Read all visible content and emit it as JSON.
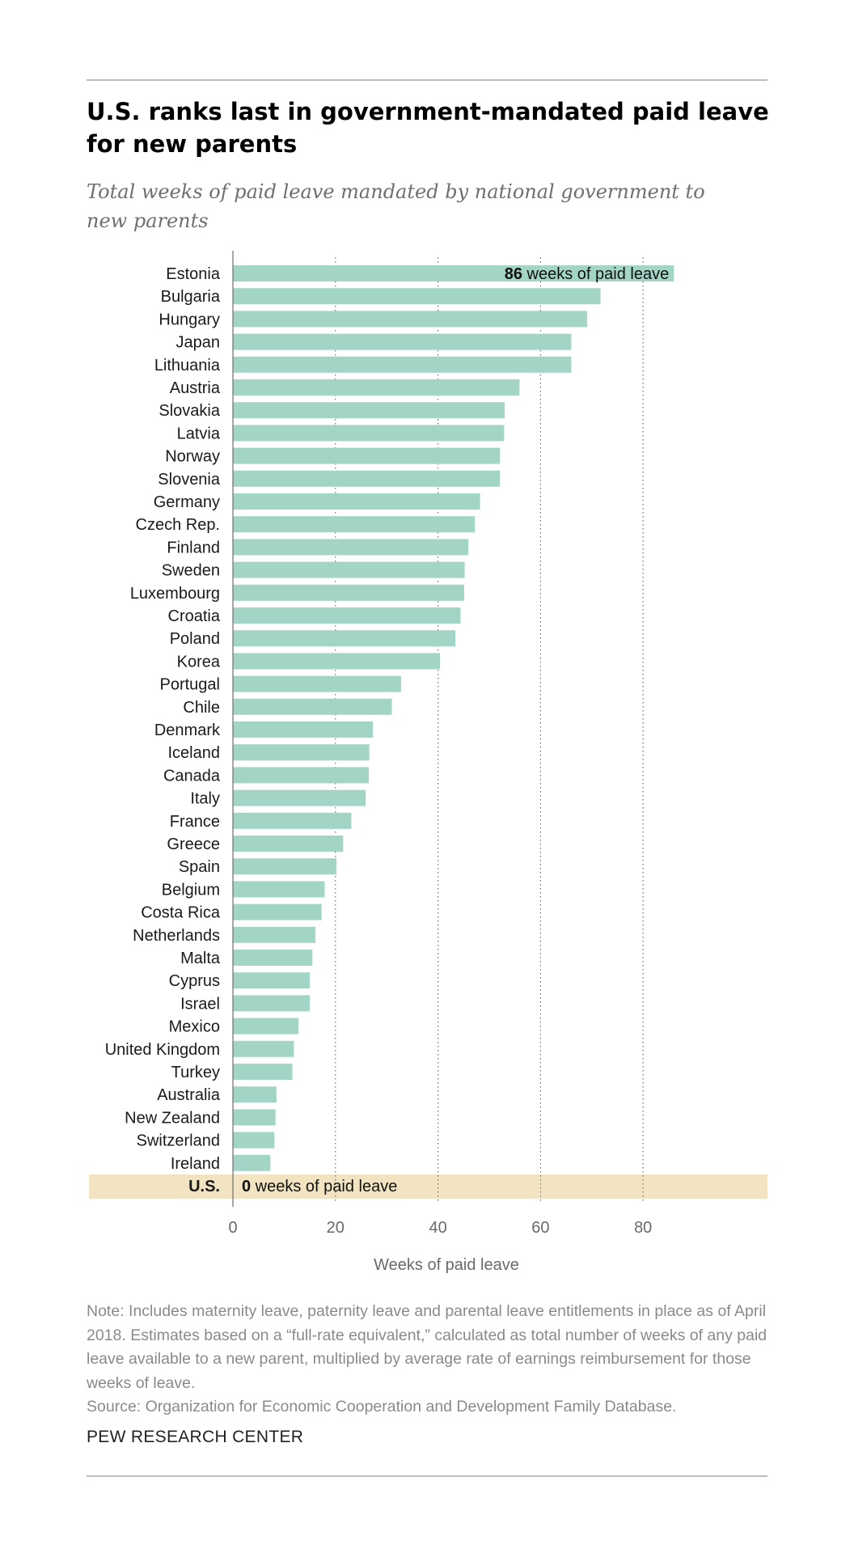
{
  "title": "U.S. ranks last in government-mandated paid leave for new parents",
  "subtitle": "Total weeks of paid leave mandated by national government to new parents",
  "chart_data": {
    "type": "bar",
    "orientation": "horizontal",
    "xlabel": "Weeks of paid leave",
    "xlim": [
      0,
      104
    ],
    "xticks": [
      0,
      20,
      40,
      60,
      80
    ],
    "grid": "vertical dotted",
    "categories": [
      "Estonia",
      "Bulgaria",
      "Hungary",
      "Japan",
      "Lithuania",
      "Austria",
      "Slovakia",
      "Latvia",
      "Norway",
      "Slovenia",
      "Germany",
      "Czech Rep.",
      "Finland",
      "Sweden",
      "Luxembourg",
      "Croatia",
      "Poland",
      "Korea",
      "Portugal",
      "Chile",
      "Denmark",
      "Iceland",
      "Canada",
      "Italy",
      "France",
      "Greece",
      "Spain",
      "Belgium",
      "Costa Rica",
      "Netherlands",
      "Malta",
      "Cyprus",
      "Israel",
      "Mexico",
      "United Kingdom",
      "Turkey",
      "Australia",
      "New Zealand",
      "Switzerland",
      "Ireland",
      "U.S."
    ],
    "values": [
      86.0,
      71.7,
      69.1,
      66.0,
      66.0,
      55.9,
      53.0,
      52.9,
      52.1,
      52.1,
      48.2,
      47.2,
      45.9,
      45.2,
      45.1,
      44.4,
      43.4,
      40.4,
      32.8,
      31.0,
      27.3,
      26.6,
      26.5,
      25.9,
      23.1,
      21.5,
      20.2,
      17.9,
      17.3,
      16.1,
      15.5,
      15.0,
      15.0,
      12.8,
      11.9,
      11.6,
      8.5,
      8.3,
      8.1,
      7.3,
      0
    ],
    "annotations": {
      "top": {
        "value": "86",
        "text": "weeks of paid leave"
      },
      "us": {
        "value": "0",
        "text": "weeks of paid leave"
      }
    },
    "colors": {
      "bar": "#a3d5c7",
      "us_highlight": "#f2e4c0",
      "grid": "#6e6e6e",
      "axis": "#6e6e6e"
    }
  },
  "notes": {
    "note": "Note: Includes maternity leave, paternity leave and parental leave entitlements in place as of April 2018. Estimates based on a “full-rate equivalent,” calculated as total number of weeks of any paid leave available to a new parent, multiplied by average rate of earnings reimbursement for those weeks of leave.",
    "source": "Source: Organization for Economic Cooperation and Development Family Database."
  },
  "brand": "PEW RESEARCH CENTER"
}
